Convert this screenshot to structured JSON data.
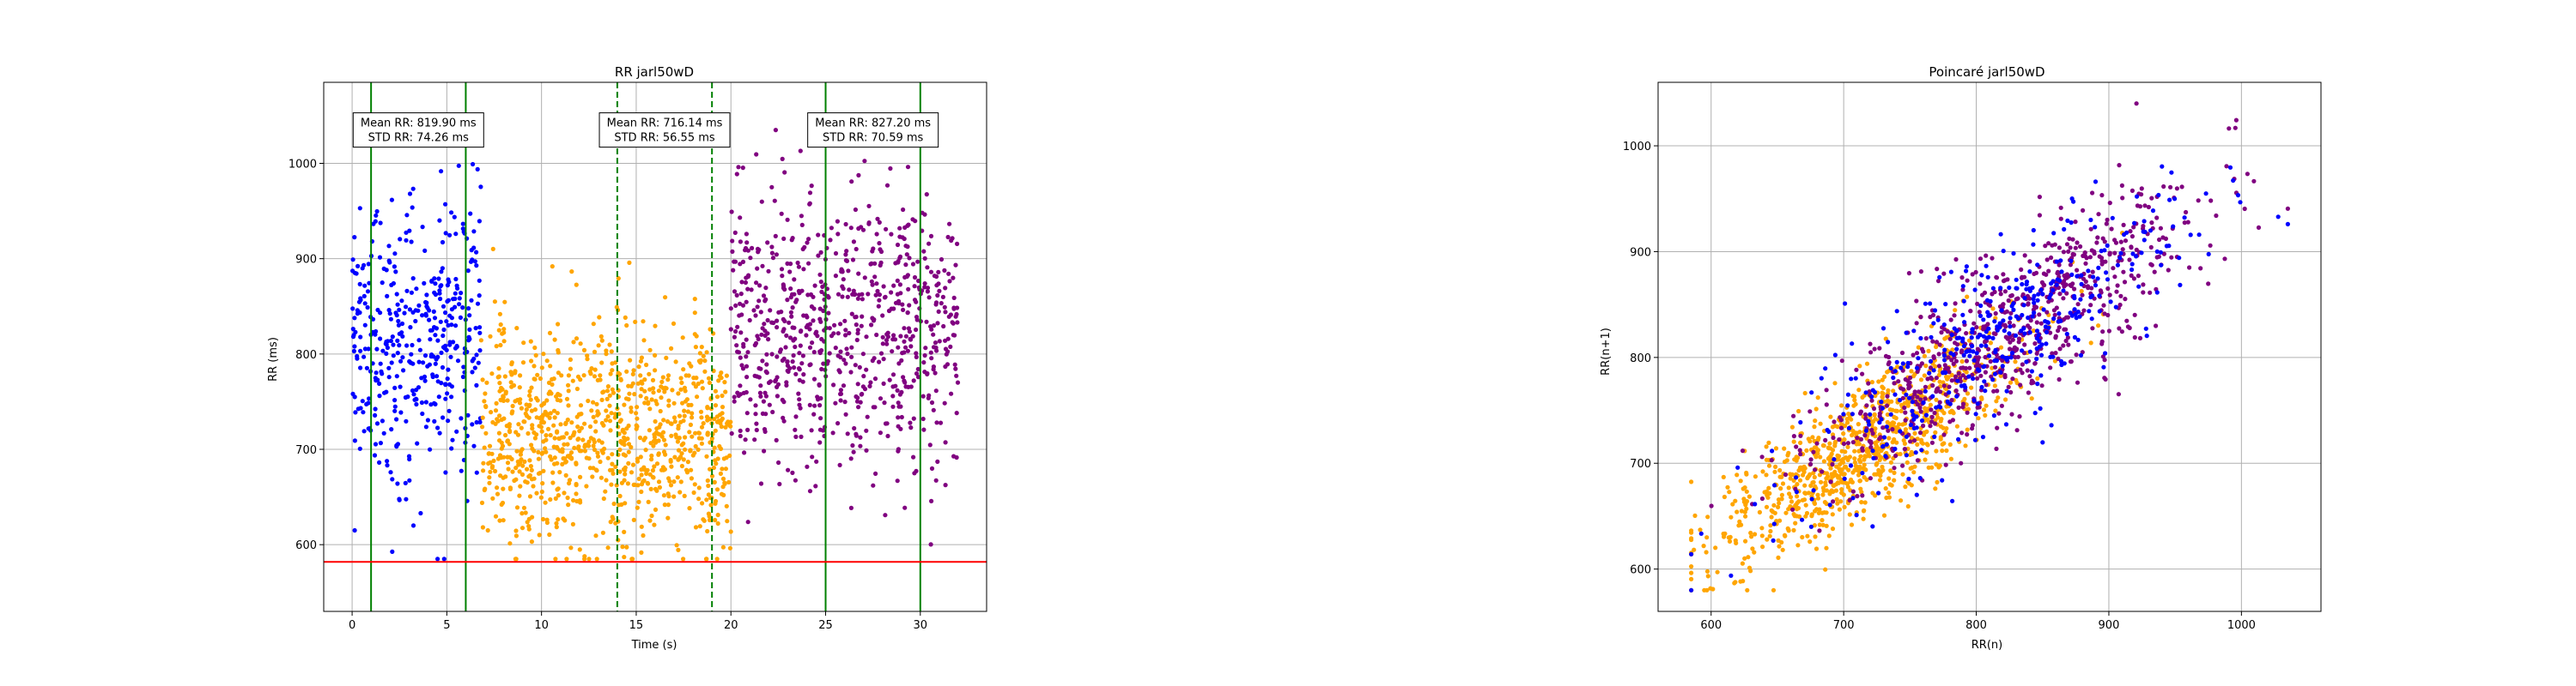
{
  "chart_data": [
    {
      "type": "scatter",
      "title": "RR jarl50wD",
      "xlabel": "Time (s)",
      "ylabel": "RR (ms)",
      "xlim": [
        -1.5,
        33.5
      ],
      "ylim": [
        530,
        1085
      ],
      "xticks": [
        0,
        5,
        10,
        15,
        20,
        25,
        30
      ],
      "yticks": [
        600,
        700,
        800,
        900,
        1000
      ],
      "grid": true,
      "threshold_line": {
        "y": 582,
        "color": "#ff0000"
      },
      "vertical_lines": [
        {
          "x": 1,
          "style": "solid",
          "color": "#008000"
        },
        {
          "x": 6,
          "style": "solid",
          "color": "#008000"
        },
        {
          "x": 14,
          "style": "dashed",
          "color": "#008000"
        },
        {
          "x": 19,
          "style": "dashed",
          "color": "#008000"
        },
        {
          "x": 25,
          "style": "solid",
          "color": "#008000"
        },
        {
          "x": 30,
          "style": "solid",
          "color": "#008000"
        }
      ],
      "annotations": [
        {
          "x": 3.5,
          "y": 1035,
          "lines": [
            "Mean RR: 819.90 ms",
            "STD RR: 74.26 ms"
          ]
        },
        {
          "x": 16.5,
          "y": 1035,
          "lines": [
            "Mean RR: 716.14 ms",
            "STD RR: 56.55 ms"
          ]
        },
        {
          "x": 27.5,
          "y": 1035,
          "lines": [
            "Mean RR: 827.20 ms",
            "STD RR: 70.59 ms"
          ]
        }
      ],
      "series": [
        {
          "color": "#0000ff",
          "x_range": [
            0,
            6.8
          ],
          "mean": 819.9,
          "std": 74.26,
          "count": 420
        },
        {
          "color": "#ffa500",
          "x_range": [
            6.8,
            20
          ],
          "mean": 716.14,
          "std": 56.55,
          "count": 950
        },
        {
          "color": "#800080",
          "x_range": [
            20,
            32
          ],
          "mean": 827.2,
          "std": 70.59,
          "count": 760
        }
      ]
    },
    {
      "type": "scatter",
      "title": "Poincaré jarl50wD",
      "xlabel": "RR(n)",
      "ylabel": "RR(n+1)",
      "xlim": [
        560,
        1060
      ],
      "ylim": [
        560,
        1060
      ],
      "xticks": [
        600,
        700,
        800,
        900,
        1000
      ],
      "yticks": [
        600,
        700,
        800,
        900,
        1000
      ],
      "grid": true,
      "series": [
        {
          "color": "#ffa500",
          "mean": 716.14,
          "std": 56.55,
          "count": 950
        },
        {
          "color": "#800080",
          "mean": 827.2,
          "std": 70.59,
          "count": 760
        },
        {
          "color": "#0000ff",
          "mean": 819.9,
          "std": 74.26,
          "count": 420
        }
      ]
    }
  ]
}
